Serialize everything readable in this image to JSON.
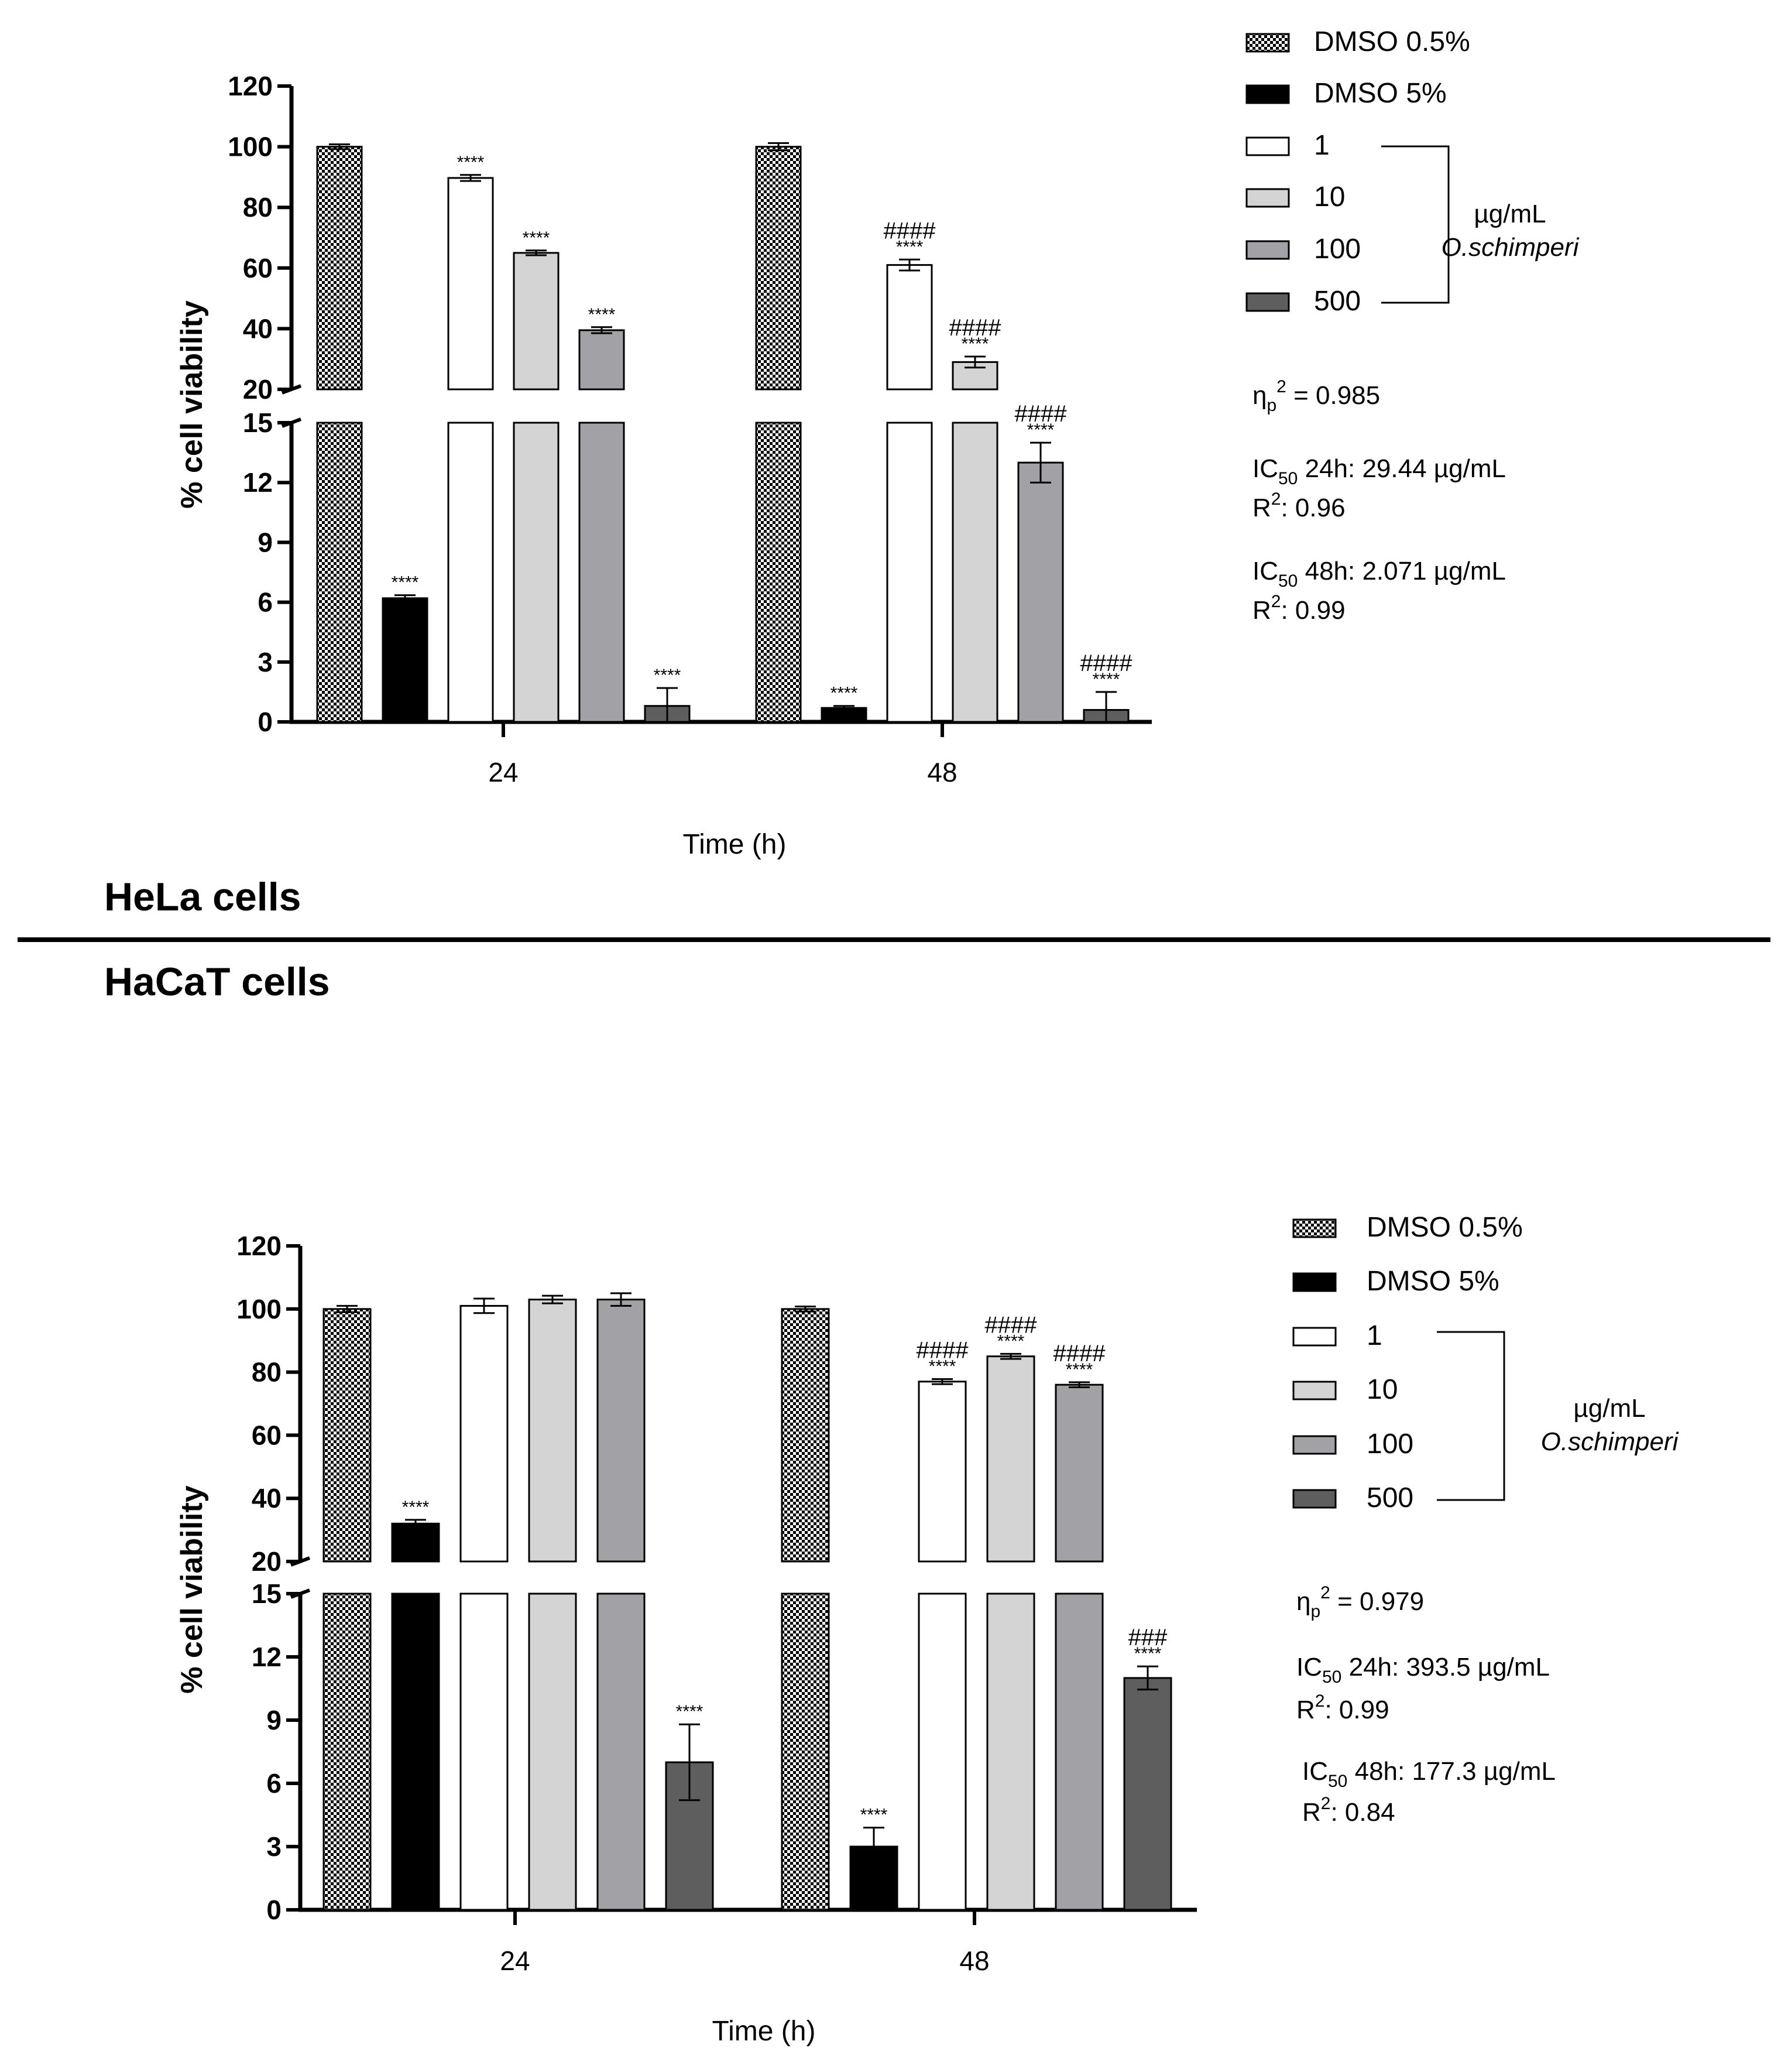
{
  "colors": {
    "dmso05_fill": "#ffffff",
    "dmso05_checker": "#000000",
    "dmso5": "#000000",
    "c1": "#ffffff",
    "c10": "#d4d4d4",
    "c100": "#a2a2a6",
    "c500": "#5e5e5e",
    "axis": "#000000"
  },
  "divider": {
    "top_label": "HeLa cells",
    "bottom_label": "HaCaT cells"
  },
  "legend": {
    "items": [
      "DMSO 0.5%",
      "DMSO 5%",
      "1",
      "10",
      "100",
      "500"
    ],
    "unit": "µg/mL",
    "species": "O.schimperi"
  },
  "chart_data": [
    {
      "type": "bar",
      "panel": "HeLa cells",
      "xlabel": "Time (h)",
      "ylabel": "% cell viability",
      "categories": [
        "24",
        "48"
      ],
      "y_axis_break": {
        "lower_range": [
          0,
          15
        ],
        "upper_range": [
          20,
          120
        ]
      },
      "lower_ticks": [
        "0",
        "3",
        "6",
        "9",
        "12",
        "15"
      ],
      "upper_ticks": [
        "20",
        "40",
        "60",
        "80",
        "100",
        "120"
      ],
      "series": [
        {
          "name": "DMSO 0.5%",
          "values": [
            100,
            100
          ],
          "errors": [
            0.8,
            1.2
          ],
          "stars": [
            "",
            ""
          ],
          "hashes": [
            "",
            ""
          ]
        },
        {
          "name": "DMSO 5%",
          "values": [
            6.2,
            0.7
          ],
          "errors": [
            0.15,
            0.1
          ],
          "stars": [
            "****",
            "****"
          ],
          "hashes": [
            "",
            ""
          ]
        },
        {
          "name": "1",
          "values": [
            89.7,
            61
          ],
          "errors": [
            1,
            1.8
          ],
          "stars": [
            "****",
            "****"
          ],
          "hashes": [
            "",
            "####"
          ]
        },
        {
          "name": "10",
          "values": [
            65,
            29
          ],
          "errors": [
            0.8,
            1.8
          ],
          "stars": [
            "****",
            "****"
          ],
          "hashes": [
            "",
            "####"
          ]
        },
        {
          "name": "100",
          "values": [
            39.5,
            13
          ],
          "errors": [
            1,
            1
          ],
          "stars": [
            "****",
            "****"
          ],
          "hashes": [
            "",
            "####"
          ]
        },
        {
          "name": "500",
          "values": [
            0.8,
            0.6
          ],
          "errors": [
            0.9,
            0.9
          ],
          "stars": [
            "****",
            "****"
          ],
          "hashes": [
            "",
            "####"
          ]
        }
      ],
      "stats": {
        "eta_symbol": "η",
        "eta_sub": "p",
        "eta_sup": "2",
        "eta_value": " = 0.985",
        "ic1_prefix": "IC",
        "ic1_sub": "50",
        "ic1_text": " 24h: 29.44 µg/mL",
        "r1_prefix": "R",
        "r1_sup": "2",
        "r1_text": ": 0.96",
        "ic2_prefix": "IC",
        "ic2_sub": "50",
        "ic2_text": " 48h: 2.071 µg/mL",
        "r2_prefix": "R",
        "r2_sup": "2",
        "r2_text": ": 0.99"
      }
    },
    {
      "type": "bar",
      "panel": "HaCaT cells",
      "xlabel": "Time (h)",
      "ylabel": "% cell viability",
      "categories": [
        "24",
        "48"
      ],
      "y_axis_break": {
        "lower_range": [
          0,
          15
        ],
        "upper_range": [
          20,
          120
        ]
      },
      "lower_ticks": [
        "0",
        "3",
        "6",
        "9",
        "12",
        "15"
      ],
      "upper_ticks": [
        "20",
        "40",
        "60",
        "80",
        "100",
        "120"
      ],
      "series": [
        {
          "name": "DMSO 0.5%",
          "values": [
            100,
            100
          ],
          "errors": [
            1,
            0.8
          ],
          "stars": [
            "",
            ""
          ],
          "hashes": [
            "",
            ""
          ]
        },
        {
          "name": "DMSO 5%",
          "values": [
            32,
            3
          ],
          "errors": [
            1.2,
            0.9
          ],
          "stars": [
            "****",
            "****"
          ],
          "hashes": [
            "",
            ""
          ]
        },
        {
          "name": "1",
          "values": [
            101,
            77
          ],
          "errors": [
            2.3,
            0.8
          ],
          "stars": [
            "",
            "****"
          ],
          "hashes": [
            "",
            "####"
          ]
        },
        {
          "name": "10",
          "values": [
            103,
            85
          ],
          "errors": [
            1.2,
            0.8
          ],
          "stars": [
            "",
            "****"
          ],
          "hashes": [
            "",
            "####"
          ]
        },
        {
          "name": "100",
          "values": [
            103,
            76
          ],
          "errors": [
            2,
            0.8
          ],
          "stars": [
            "",
            "****"
          ],
          "hashes": [
            "",
            "####"
          ]
        },
        {
          "name": "500",
          "values": [
            7,
            11
          ],
          "errors": [
            1.8,
            0.55
          ],
          "stars": [
            "****",
            "****"
          ],
          "hashes": [
            "",
            "###"
          ]
        }
      ],
      "stats": {
        "eta_symbol": "η",
        "eta_sub": "p",
        "eta_sup": "2",
        "eta_value": " = 0.979",
        "ic1_prefix": "IC",
        "ic1_sub": "50",
        "ic1_text": " 24h: 393.5 µg/mL",
        "r1_prefix": "R",
        "r1_sup": "2",
        "r1_text": ": 0.99",
        "ic2_prefix": "IC",
        "ic2_sub": "50",
        "ic2_text": " 48h: 177.3 µg/mL",
        "r2_prefix": "R",
        "r2_sup": "2",
        "r2_text": ": 0.84"
      }
    }
  ]
}
